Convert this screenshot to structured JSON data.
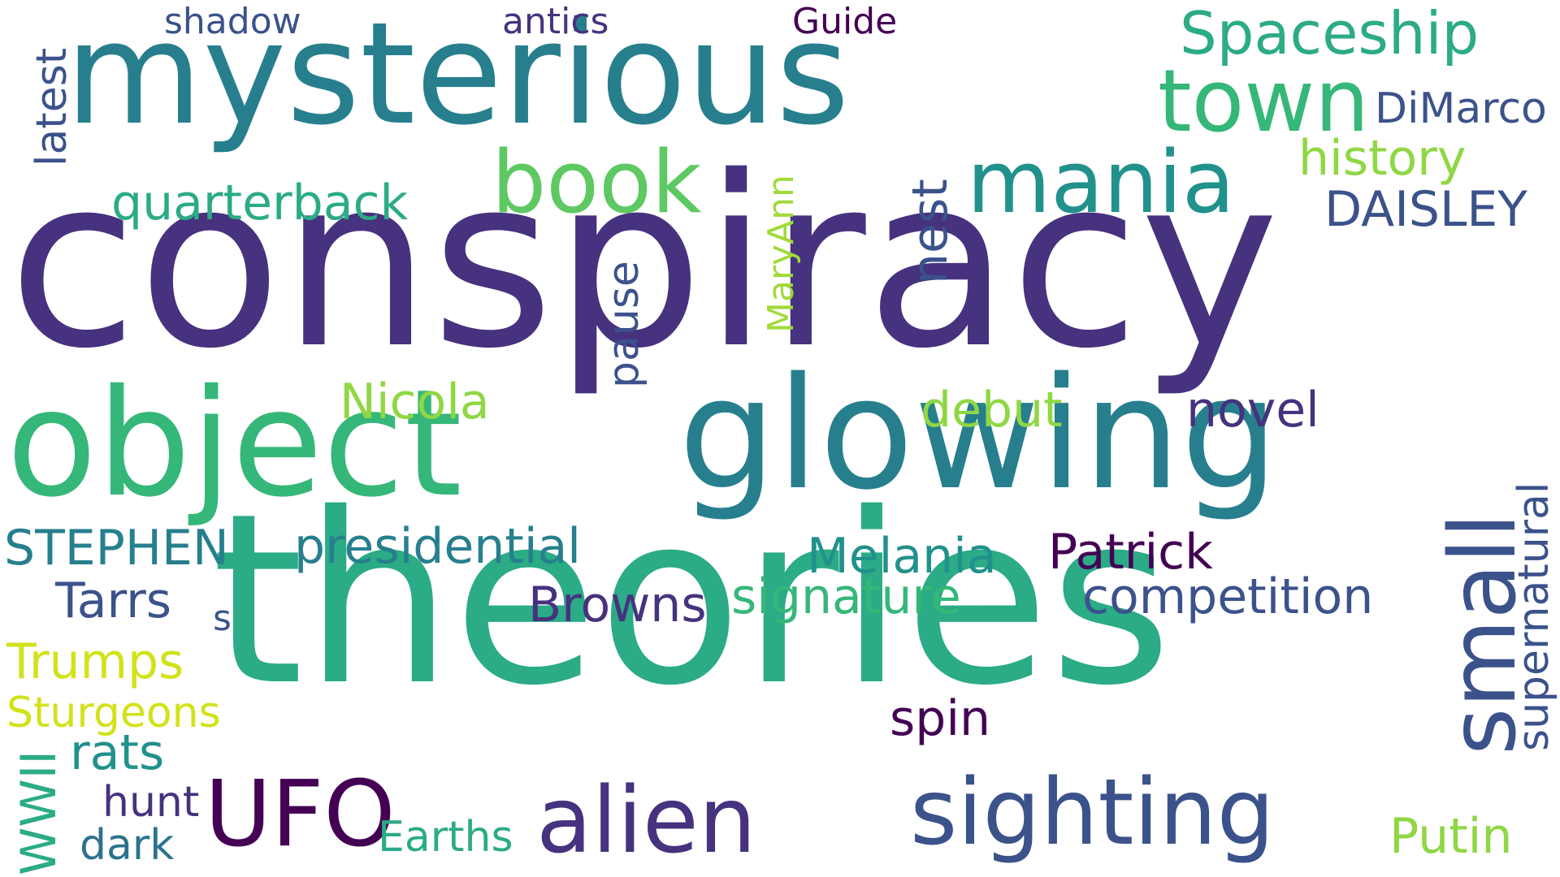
{
  "words": [
    {
      "text": "conspiracy",
      "color": "#46327e"
    },
    {
      "text": "theories",
      "color": "#2bab86"
    },
    {
      "text": "mysterious",
      "color": "#277f8e"
    },
    {
      "text": "glowing",
      "color": "#277f8e"
    },
    {
      "text": "object",
      "color": "#35b779"
    },
    {
      "text": "small",
      "color": "#3b528b"
    },
    {
      "text": "sighting",
      "color": "#3b528b"
    },
    {
      "text": "alien",
      "color": "#46327e"
    },
    {
      "text": "UFO",
      "color": "#440154"
    },
    {
      "text": "book",
      "color": "#5ec962"
    },
    {
      "text": "mania",
      "color": "#21918c"
    },
    {
      "text": "town",
      "color": "#35b779"
    },
    {
      "text": "Spaceship",
      "color": "#2bab86"
    },
    {
      "text": "presidential",
      "color": "#277f8e"
    },
    {
      "text": "Patrick",
      "color": "#440154"
    },
    {
      "text": "Melania",
      "color": "#21918c"
    },
    {
      "text": "competition",
      "color": "#3b528b"
    },
    {
      "text": "signature",
      "color": "#35b779"
    },
    {
      "text": "Browns",
      "color": "#46327e"
    },
    {
      "text": "quarterback",
      "color": "#2bab86"
    },
    {
      "text": "supernatural",
      "color": "#3b528b"
    },
    {
      "text": "DAISLEY",
      "color": "#3b528b"
    },
    {
      "text": "history",
      "color": "#8fd744"
    },
    {
      "text": "DiMarco",
      "color": "#3b528b"
    },
    {
      "text": "novel",
      "color": "#46327e"
    },
    {
      "text": "debut",
      "color": "#8fd744"
    },
    {
      "text": "Nicola",
      "color": "#8fd744"
    },
    {
      "text": "STEPHEN",
      "color": "#277f8e"
    },
    {
      "text": "Tarrs",
      "color": "#3b528b"
    },
    {
      "text": "s",
      "color": "#3b528b"
    },
    {
      "text": "Trumps",
      "color": "#d2e21b"
    },
    {
      "text": "Sturgeons",
      "color": "#d2e21b"
    },
    {
      "text": "rats",
      "color": "#21918c"
    },
    {
      "text": "hunt",
      "color": "#46327e"
    },
    {
      "text": "dark",
      "color": "#2c728e"
    },
    {
      "text": "WWII",
      "color": "#2bab86"
    },
    {
      "text": "Earths",
      "color": "#2bab86"
    },
    {
      "text": "spin",
      "color": "#440154"
    },
    {
      "text": "Putin",
      "color": "#8fd744"
    },
    {
      "text": "nest",
      "color": "#3b528b"
    },
    {
      "text": "pause",
      "color": "#3b528b"
    },
    {
      "text": "MaryAnn",
      "color": "#a0da39"
    },
    {
      "text": "latest",
      "color": "#3b528b"
    },
    {
      "text": "shadow",
      "color": "#3b528b"
    },
    {
      "text": "antics",
      "color": "#46327e"
    },
    {
      "text": "Guide",
      "color": "#440154"
    }
  ]
}
